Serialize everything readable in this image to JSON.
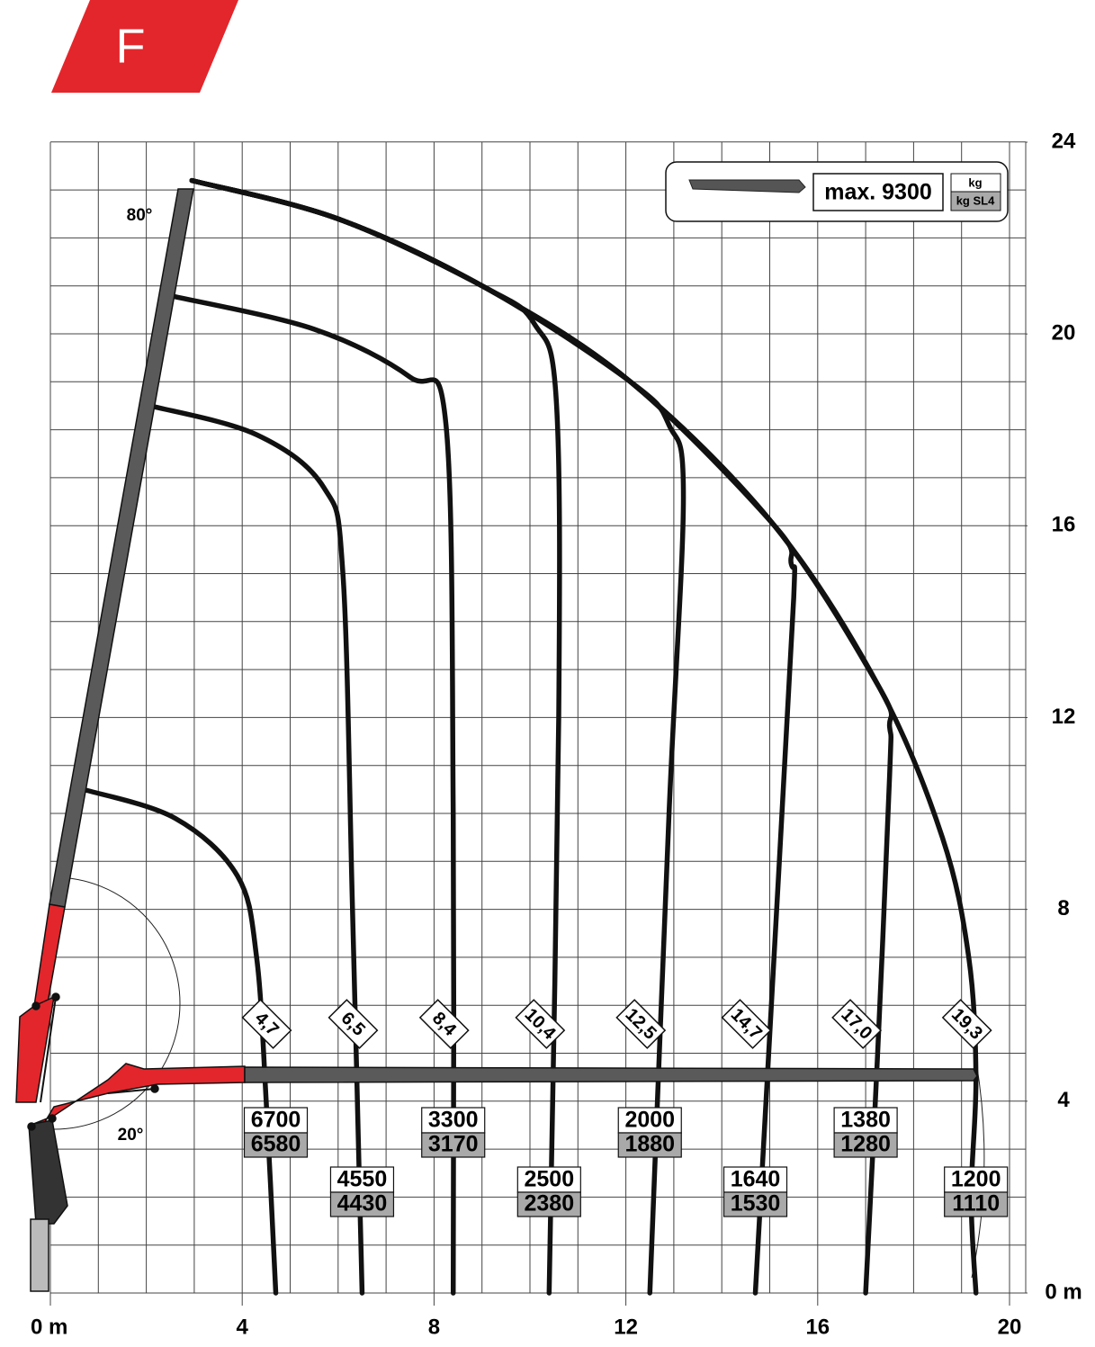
{
  "chart_data": {
    "type": "load-chart",
    "badge": "F",
    "max_label": "max. 9300",
    "unit": "kg",
    "unit_sl4": "kg SL4",
    "angle_top": "80°",
    "angle_bottom": "20°",
    "xlim": [
      0,
      20
    ],
    "ylim": [
      0,
      24
    ],
    "xticks": [
      {
        "value": 0,
        "label": "0 m"
      },
      4,
      8,
      12,
      16,
      20
    ],
    "yticks": [
      {
        "value": 0,
        "label": "0 m"
      },
      4,
      8,
      12,
      16,
      20,
      24
    ],
    "grid": true,
    "reach": {
      "values": [
        4.7,
        6.5,
        8.4,
        10.4,
        12.5,
        14.7,
        17.0,
        19.3
      ],
      "value_labels": [
        "4,7",
        "6,5",
        "8,4",
        "10,4",
        "12,5",
        "14,7",
        "17,0",
        "19,3"
      ]
    },
    "loads": [
      6700,
      4550,
      3300,
      2500,
      2000,
      1640,
      1380,
      1200
    ],
    "loads_sl4": [
      6580,
      4430,
      3170,
      2380,
      1880,
      1530,
      1280,
      1110
    ],
    "color": "#e3262b",
    "line_color": "#111111"
  }
}
